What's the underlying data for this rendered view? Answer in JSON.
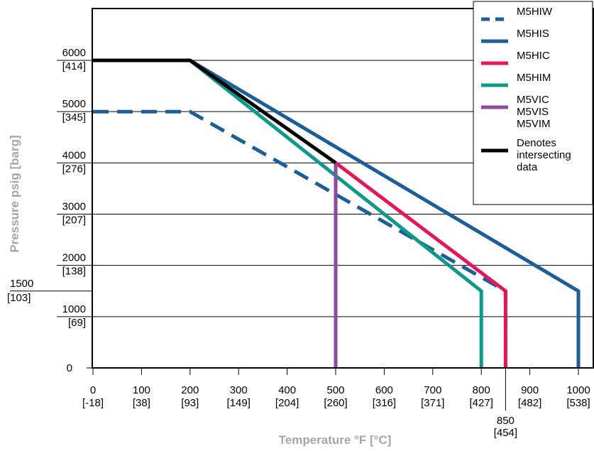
{
  "chart_data": {
    "type": "line",
    "xlabel": "Temperature °F [°C]",
    "ylabel": "Pressure psig [barg]",
    "xlim": [
      0,
      1000
    ],
    "ylim": [
      0,
      7000
    ],
    "grid": "horizontal",
    "legend_position": "top-right",
    "x_ticks": [
      {
        "value": 0,
        "line1": "0",
        "line2": "[-18]"
      },
      {
        "value": 100,
        "line1": "100",
        "line2": "[38]"
      },
      {
        "value": 200,
        "line1": "200",
        "line2": "[93]"
      },
      {
        "value": 300,
        "line1": "300",
        "line2": "[149]"
      },
      {
        "value": 400,
        "line1": "400",
        "line2": "[204]"
      },
      {
        "value": 500,
        "line1": "500",
        "line2": "[260]"
      },
      {
        "value": 600,
        "line1": "600",
        "line2": "[316]"
      },
      {
        "value": 700,
        "line1": "700",
        "line2": "[371]"
      },
      {
        "value": 800,
        "line1": "800",
        "line2": "[427]"
      },
      {
        "value": 850,
        "line1": "850",
        "line2": "[454]",
        "below": true
      },
      {
        "value": 900,
        "line1": "900",
        "line2": "[482]"
      },
      {
        "value": 1000,
        "line1": "1000",
        "line2": "[538]"
      }
    ],
    "y_ticks": [
      {
        "value": 0,
        "line1": "0",
        "line2": ""
      },
      {
        "value": 1000,
        "line1": "1000",
        "line2": "[69]"
      },
      {
        "value": 1500,
        "line1": "1500",
        "line2": "[103]",
        "outside": true
      },
      {
        "value": 2000,
        "line1": "2000",
        "line2": "[138]"
      },
      {
        "value": 3000,
        "line1": "3000",
        "line2": "[207]"
      },
      {
        "value": 4000,
        "line1": "4000",
        "line2": "[276]"
      },
      {
        "value": 5000,
        "line1": "5000",
        "line2": "[345]"
      },
      {
        "value": 6000,
        "line1": "6000",
        "line2": "[414]"
      }
    ],
    "gridlines": [
      1000,
      2000,
      3000,
      4000,
      5000,
      6000
    ],
    "series": [
      {
        "name": "M5HIS",
        "color": "#1c5e97",
        "dash": false,
        "points": [
          [
            0,
            6000
          ],
          [
            200,
            6000
          ],
          [
            1000,
            1500
          ],
          [
            1000,
            0
          ]
        ]
      },
      {
        "name": "M5HIW",
        "color": "#1c5e97",
        "dash": true,
        "points": [
          [
            0,
            5000
          ],
          [
            200,
            5000
          ],
          [
            850,
            1500
          ],
          [
            850,
            0
          ]
        ]
      },
      {
        "name": "M5HIC",
        "color": "#e3185a",
        "dash": false,
        "points": [
          [
            500,
            4000
          ],
          [
            850,
            1500
          ],
          [
            850,
            0
          ]
        ]
      },
      {
        "name": "M5HIM",
        "color": "#10998a",
        "dash": false,
        "points": [
          [
            200,
            6000
          ],
          [
            800,
            1500
          ],
          [
            800,
            0
          ]
        ]
      },
      {
        "name": "M5VIC M5VIS M5VIM",
        "color": "#8e4a9e",
        "dash": false,
        "points": [
          [
            500,
            4000
          ],
          [
            500,
            0
          ]
        ]
      },
      {
        "name": "Denotes intersecting data",
        "color": "#000000",
        "dash": false,
        "points": [
          [
            0,
            6000
          ],
          [
            200,
            6000
          ],
          [
            500,
            4000
          ]
        ]
      }
    ],
    "legend": [
      {
        "lines": [
          "M5HIW"
        ],
        "color": "#1c5e97",
        "dash": true
      },
      {
        "lines": [
          "M5HIS"
        ],
        "color": "#1c5e97",
        "dash": false
      },
      {
        "lines": [
          "M5HIC"
        ],
        "color": "#e3185a",
        "dash": false
      },
      {
        "lines": [
          "M5HIM"
        ],
        "color": "#10998a",
        "dash": false
      },
      {
        "lines": [
          "M5VIC",
          "M5VIS",
          "M5VIM"
        ],
        "color": "#8e4a9e",
        "dash": false
      },
      {
        "lines": [
          "Denotes",
          "intersecting",
          "data"
        ],
        "color": "#000000",
        "dash": false
      }
    ]
  }
}
